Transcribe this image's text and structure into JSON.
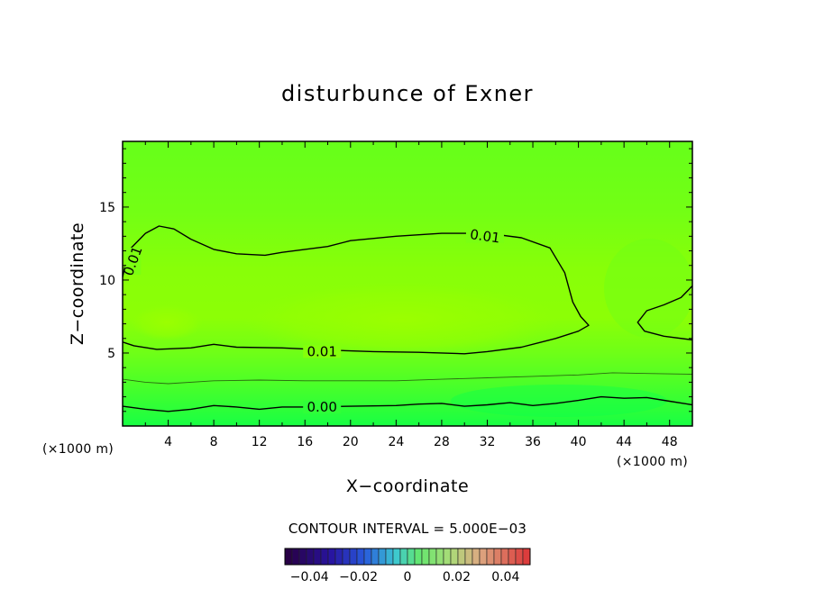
{
  "chart_data": {
    "type": "contour",
    "title": "disturbunce of Exner",
    "xlabel": "X−coordinate",
    "ylabel": "Z−coordinate",
    "x_unit": "(×1000 m)",
    "y_unit": "(×1000 m)",
    "xlim": [
      0,
      50
    ],
    "ylim": [
      0,
      19.5
    ],
    "x_ticks": [
      4,
      8,
      12,
      16,
      20,
      24,
      28,
      32,
      36,
      40,
      44,
      48
    ],
    "y_ticks": [
      5,
      10,
      15
    ],
    "contour_interval_label": "CONTOUR INTERVAL = 5.000E−03",
    "contours": [
      {
        "level": 0.01,
        "label": "0.01",
        "points": [
          [
            0,
            10.2
          ],
          [
            0.5,
            12
          ],
          [
            2,
            13.2
          ],
          [
            3.2,
            13.7
          ],
          [
            4.5,
            13.5
          ],
          [
            6,
            12.8
          ],
          [
            8,
            12.1
          ],
          [
            10,
            11.8
          ],
          [
            12.5,
            11.7
          ],
          [
            14,
            11.9
          ],
          [
            16,
            12.1
          ],
          [
            18,
            12.3
          ],
          [
            20,
            12.7
          ],
          [
            24,
            13
          ],
          [
            28,
            13.2
          ],
          [
            32,
            13.2
          ],
          [
            35,
            12.9
          ],
          [
            37.5,
            12.2
          ],
          [
            38.8,
            10.5
          ],
          [
            39.5,
            8.5
          ],
          [
            40.2,
            7.5
          ],
          [
            40.9,
            6.9
          ],
          [
            40,
            6.5
          ],
          [
            38,
            6
          ],
          [
            35,
            5.4
          ],
          [
            32,
            5.1
          ],
          [
            30,
            4.95
          ],
          [
            26,
            5.05
          ],
          [
            22,
            5.1
          ],
          [
            18,
            5.2
          ],
          [
            14,
            5.35
          ],
          [
            10,
            5.4
          ],
          [
            8,
            5.6
          ],
          [
            6,
            5.35
          ],
          [
            3,
            5.25
          ],
          [
            1,
            5.5
          ],
          [
            0,
            5.75
          ]
        ]
      },
      {
        "level": 0.01,
        "label": "",
        "points": [
          [
            50,
            9.6
          ],
          [
            49,
            8.8
          ],
          [
            47.5,
            8.3
          ],
          [
            46,
            7.9
          ],
          [
            45.2,
            7.1
          ],
          [
            45.8,
            6.5
          ],
          [
            47.5,
            6.15
          ],
          [
            50,
            5.9
          ]
        ]
      },
      {
        "level": 0.005,
        "label": "",
        "points": [
          [
            0,
            3.2
          ],
          [
            2,
            3
          ],
          [
            4,
            2.9
          ],
          [
            8,
            3.1
          ],
          [
            12,
            3.15
          ],
          [
            16,
            3.1
          ],
          [
            20,
            3.1
          ],
          [
            24,
            3.1
          ],
          [
            28,
            3.2
          ],
          [
            32,
            3.3
          ],
          [
            36,
            3.4
          ],
          [
            40,
            3.5
          ],
          [
            43,
            3.65
          ],
          [
            46,
            3.6
          ],
          [
            50,
            3.55
          ]
        ]
      },
      {
        "level": 0.0,
        "label": "0.00",
        "points": [
          [
            0,
            1.35
          ],
          [
            2,
            1.15
          ],
          [
            4,
            1.0
          ],
          [
            6,
            1.15
          ],
          [
            8,
            1.4
          ],
          [
            10,
            1.3
          ],
          [
            12,
            1.15
          ],
          [
            14,
            1.3
          ],
          [
            16,
            1.3
          ],
          [
            20,
            1.35
          ],
          [
            24,
            1.4
          ],
          [
            26,
            1.5
          ],
          [
            28,
            1.55
          ],
          [
            30,
            1.35
          ],
          [
            32,
            1.45
          ],
          [
            34,
            1.6
          ],
          [
            36,
            1.4
          ],
          [
            38,
            1.55
          ],
          [
            40,
            1.75
          ],
          [
            42,
            2.0
          ],
          [
            44,
            1.9
          ],
          [
            46,
            1.95
          ],
          [
            48,
            1.7
          ],
          [
            50,
            1.45
          ]
        ]
      }
    ],
    "colorbar": {
      "ticks": [
        "−0.04",
        "−0.02",
        "0",
        "0.02",
        "0.04"
      ],
      "range": [
        -0.05,
        0.05
      ]
    },
    "field_colors": {
      "top": "#66ff1a",
      "mid_peak": "#99ff00",
      "bottom": "#1aff44",
      "high_band": "#80ff0e"
    }
  }
}
